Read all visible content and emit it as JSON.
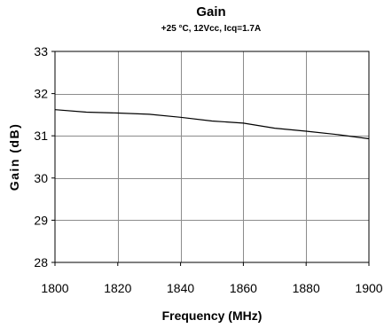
{
  "chart_data": {
    "type": "line",
    "title": "Gain",
    "subtitle": "+25 °C, 12Vcc, Icq=1.7A",
    "xlabel": "Frequency (MHz)",
    "ylabel": "Gain (dB)",
    "xlim": [
      1800,
      1900
    ],
    "ylim": [
      28,
      33
    ],
    "x_ticks": [
      1800,
      1820,
      1840,
      1860,
      1880,
      1900
    ],
    "y_ticks": [
      28,
      29,
      30,
      31,
      32,
      33
    ],
    "grid": true,
    "series": [
      {
        "x": [
          1800,
          1810,
          1820,
          1830,
          1840,
          1850,
          1860,
          1870,
          1880,
          1890,
          1900
        ],
        "y": [
          31.62,
          31.56,
          31.54,
          31.51,
          31.44,
          31.35,
          31.3,
          31.18,
          31.11,
          31.03,
          30.93
        ],
        "color": "#000000"
      }
    ]
  }
}
